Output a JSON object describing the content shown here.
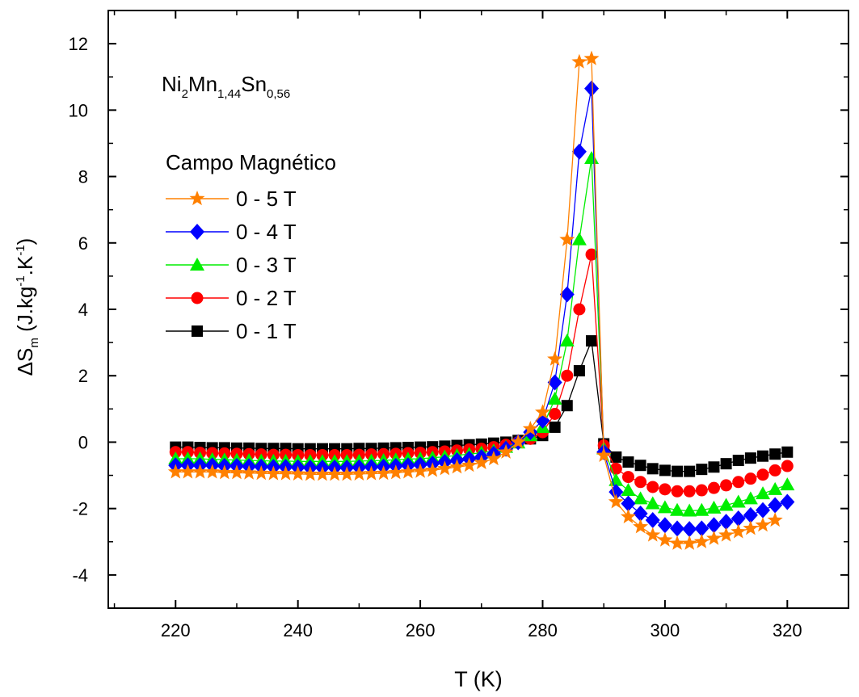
{
  "chart_data": {
    "type": "line",
    "annotation": {
      "base1": "Ni",
      "sub1": "2",
      "base2": "Mn",
      "sub2": "1,44",
      "base3": "Sn",
      "sub3": "0,56"
    },
    "legend_title": "Campo Magnético",
    "xlabel": "T (K)",
    "ylabel": {
      "base": "ΔS",
      "sub": "m",
      "part1": " (J.kg",
      "sup1": "-1",
      "part2": ".K",
      "sup2": "-1",
      "part3": ")"
    },
    "xlim": [
      209,
      330
    ],
    "ylim": [
      -5,
      13
    ],
    "xticks": [
      220,
      240,
      260,
      280,
      300,
      320
    ],
    "yticks": [
      -4,
      -2,
      0,
      2,
      4,
      6,
      8,
      10,
      12
    ],
    "xtick_labels": [
      "220",
      "240",
      "260",
      "280",
      "300",
      "320"
    ],
    "ytick_labels": [
      "-4",
      "-2",
      "0",
      "2",
      "4",
      "6",
      "8",
      "10",
      "12"
    ],
    "series": [
      {
        "name": "0 - 5 T",
        "color": "#FF8000",
        "marker": "star",
        "x": [
          220,
          222,
          224,
          226,
          228,
          230,
          232,
          234,
          236,
          238,
          240,
          242,
          244,
          246,
          248,
          250,
          252,
          254,
          256,
          258,
          260,
          262,
          264,
          266,
          268,
          270,
          272,
          274,
          276,
          278,
          280,
          282,
          284,
          286,
          288,
          290,
          292,
          294,
          296,
          298,
          300,
          302,
          304,
          306,
          308,
          310,
          312,
          314,
          316,
          318
        ],
        "y": [
          -0.9,
          -0.9,
          -0.9,
          -0.9,
          -0.92,
          -0.92,
          -0.93,
          -0.94,
          -0.95,
          -0.95,
          -0.96,
          -0.97,
          -0.97,
          -0.97,
          -0.97,
          -0.96,
          -0.95,
          -0.94,
          -0.92,
          -0.9,
          -0.88,
          -0.85,
          -0.8,
          -0.75,
          -0.7,
          -0.62,
          -0.5,
          -0.3,
          0.0,
          0.4,
          0.9,
          2.5,
          6.1,
          11.45,
          11.55,
          -0.4,
          -1.8,
          -2.25,
          -2.55,
          -2.8,
          -2.95,
          -3.05,
          -3.05,
          -3.0,
          -2.9,
          -2.8,
          -2.7,
          -2.6,
          -2.5,
          -2.35
        ]
      },
      {
        "name": "0 - 4 T",
        "color": "#0000FF",
        "marker": "diamond",
        "x": [
          220,
          222,
          224,
          226,
          228,
          230,
          232,
          234,
          236,
          238,
          240,
          242,
          244,
          246,
          248,
          250,
          252,
          254,
          256,
          258,
          260,
          262,
          264,
          266,
          268,
          270,
          272,
          274,
          276,
          278,
          280,
          282,
          284,
          286,
          288,
          290,
          292,
          294,
          296,
          298,
          300,
          302,
          304,
          306,
          308,
          310,
          312,
          314,
          316,
          318,
          320
        ],
        "y": [
          -0.7,
          -0.7,
          -0.7,
          -0.7,
          -0.72,
          -0.72,
          -0.73,
          -0.74,
          -0.75,
          -0.75,
          -0.76,
          -0.77,
          -0.77,
          -0.77,
          -0.77,
          -0.76,
          -0.75,
          -0.74,
          -0.72,
          -0.7,
          -0.68,
          -0.65,
          -0.6,
          -0.55,
          -0.5,
          -0.45,
          -0.35,
          -0.2,
          0.0,
          0.3,
          0.65,
          1.8,
          4.45,
          8.75,
          10.65,
          -0.3,
          -1.5,
          -1.85,
          -2.15,
          -2.35,
          -2.5,
          -2.6,
          -2.62,
          -2.6,
          -2.5,
          -2.4,
          -2.3,
          -2.2,
          -2.05,
          -1.9,
          -1.8
        ]
      },
      {
        "name": "0 - 3 T",
        "color": "#00EE00",
        "marker": "triangle",
        "x": [
          220,
          222,
          224,
          226,
          228,
          230,
          232,
          234,
          236,
          238,
          240,
          242,
          244,
          246,
          248,
          250,
          252,
          254,
          256,
          258,
          260,
          262,
          264,
          266,
          268,
          270,
          272,
          274,
          276,
          278,
          280,
          282,
          284,
          286,
          288,
          290,
          292,
          294,
          296,
          298,
          300,
          302,
          304,
          306,
          308,
          310,
          312,
          314,
          316,
          318,
          320
        ],
        "y": [
          -0.5,
          -0.5,
          -0.5,
          -0.52,
          -0.53,
          -0.54,
          -0.55,
          -0.56,
          -0.57,
          -0.57,
          -0.58,
          -0.58,
          -0.58,
          -0.58,
          -0.58,
          -0.57,
          -0.56,
          -0.55,
          -0.53,
          -0.51,
          -0.5,
          -0.47,
          -0.44,
          -0.4,
          -0.36,
          -0.32,
          -0.26,
          -0.15,
          -0.02,
          0.2,
          0.45,
          1.3,
          3.05,
          6.1,
          8.55,
          -0.2,
          -1.15,
          -1.45,
          -1.7,
          -1.85,
          -1.97,
          -2.05,
          -2.07,
          -2.05,
          -1.98,
          -1.9,
          -1.8,
          -1.7,
          -1.55,
          -1.42,
          -1.28
        ]
      },
      {
        "name": "0 - 2 T",
        "color": "#FF0000",
        "marker": "circle",
        "x": [
          220,
          222,
          224,
          226,
          228,
          230,
          232,
          234,
          236,
          238,
          240,
          242,
          244,
          246,
          248,
          250,
          252,
          254,
          256,
          258,
          260,
          262,
          264,
          266,
          268,
          270,
          272,
          274,
          276,
          278,
          280,
          282,
          284,
          286,
          288,
          290,
          292,
          294,
          296,
          298,
          300,
          302,
          304,
          306,
          308,
          310,
          312,
          314,
          316,
          318,
          320
        ],
        "y": [
          -0.3,
          -0.3,
          -0.32,
          -0.33,
          -0.34,
          -0.35,
          -0.36,
          -0.37,
          -0.38,
          -0.38,
          -0.39,
          -0.39,
          -0.39,
          -0.39,
          -0.39,
          -0.38,
          -0.37,
          -0.36,
          -0.35,
          -0.33,
          -0.32,
          -0.3,
          -0.28,
          -0.25,
          -0.22,
          -0.2,
          -0.15,
          -0.08,
          0.0,
          0.1,
          0.3,
          0.85,
          2.0,
          4.0,
          5.65,
          -0.1,
          -0.8,
          -1.05,
          -1.2,
          -1.35,
          -1.42,
          -1.48,
          -1.48,
          -1.45,
          -1.38,
          -1.3,
          -1.2,
          -1.1,
          -0.98,
          -0.85,
          -0.72
        ]
      },
      {
        "name": "0 - 1 T",
        "color": "#000000",
        "marker": "square",
        "x": [
          220,
          222,
          224,
          226,
          228,
          230,
          232,
          234,
          236,
          238,
          240,
          242,
          244,
          246,
          248,
          250,
          252,
          254,
          256,
          258,
          260,
          262,
          264,
          266,
          268,
          270,
          272,
          274,
          276,
          278,
          280,
          282,
          284,
          286,
          288,
          290,
          292,
          294,
          296,
          298,
          300,
          302,
          304,
          306,
          308,
          310,
          312,
          314,
          316,
          318,
          320
        ],
        "y": [
          -0.15,
          -0.15,
          -0.16,
          -0.17,
          -0.17,
          -0.18,
          -0.18,
          -0.19,
          -0.19,
          -0.19,
          -0.2,
          -0.2,
          -0.2,
          -0.2,
          -0.2,
          -0.19,
          -0.19,
          -0.18,
          -0.17,
          -0.16,
          -0.15,
          -0.14,
          -0.12,
          -0.1,
          -0.08,
          -0.06,
          -0.03,
          0.0,
          0.05,
          0.1,
          0.2,
          0.45,
          1.1,
          2.15,
          3.05,
          -0.05,
          -0.45,
          -0.6,
          -0.7,
          -0.8,
          -0.85,
          -0.88,
          -0.88,
          -0.82,
          -0.75,
          -0.65,
          -0.55,
          -0.48,
          -0.42,
          -0.36,
          -0.3
        ]
      }
    ]
  }
}
